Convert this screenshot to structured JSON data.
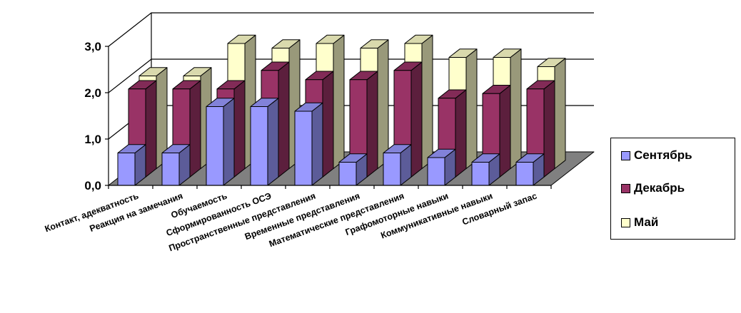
{
  "chart_data": {
    "type": "bar",
    "title": "",
    "xlabel": "",
    "ylabel": "",
    "ylim": [
      0,
      3
    ],
    "yticks": [
      "0,0",
      "1,0",
      "2,0",
      "3,0"
    ],
    "categories": [
      "Контакт, адекватность",
      "Реакция на замечания",
      "Обучаемость",
      "Сформированность ОСЭ",
      "Пространственные представления",
      "Временные представления",
      "Математические представления",
      "Графомоторные навыки",
      "Коммуникативные  навыки",
      "Словарный запас"
    ],
    "series": [
      {
        "name": "Сентябрь",
        "values": [
          0.7,
          0.7,
          1.7,
          1.7,
          1.6,
          0.5,
          0.7,
          0.6,
          0.5,
          0.5
        ],
        "color": "#9999ff"
      },
      {
        "name": "Декабрь",
        "values": [
          1.9,
          1.9,
          1.9,
          2.3,
          2.1,
          2.1,
          2.3,
          1.7,
          1.8,
          1.9
        ],
        "color": "#993366"
      },
      {
        "name": "Май",
        "values": [
          2.0,
          2.0,
          2.7,
          2.6,
          2.7,
          2.6,
          2.7,
          2.4,
          2.4,
          2.2
        ],
        "color": "#ffffcc"
      }
    ],
    "grid": true,
    "legend_position": "right",
    "style": "3d-clustered-bar"
  }
}
